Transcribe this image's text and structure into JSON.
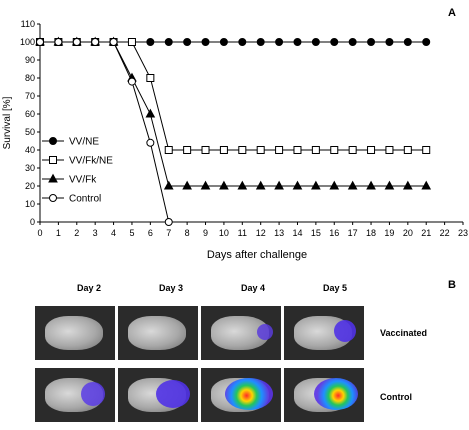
{
  "panels": {
    "a_label": "A",
    "b_label": "B"
  },
  "chart_data": {
    "type": "line",
    "title": "",
    "xlabel": "Days after challenge",
    "ylabel": "Survival [%]",
    "xlim": [
      0,
      23
    ],
    "ylim": [
      0,
      110
    ],
    "xticks": [
      0,
      1,
      2,
      3,
      4,
      5,
      6,
      7,
      8,
      9,
      10,
      11,
      12,
      13,
      14,
      15,
      16,
      17,
      18,
      19,
      20,
      21,
      22,
      23
    ],
    "yticks": [
      0,
      10,
      20,
      30,
      40,
      50,
      60,
      70,
      80,
      90,
      100,
      110
    ],
    "legend_position": "left-middle",
    "series": [
      {
        "name": "VV/NE",
        "marker": "filled-circle",
        "x": [
          0,
          1,
          2,
          3,
          4,
          5,
          6,
          7,
          8,
          9,
          10,
          11,
          12,
          13,
          14,
          15,
          16,
          17,
          18,
          19,
          20,
          21
        ],
        "y": [
          100,
          100,
          100,
          100,
          100,
          100,
          100,
          100,
          100,
          100,
          100,
          100,
          100,
          100,
          100,
          100,
          100,
          100,
          100,
          100,
          100,
          100
        ]
      },
      {
        "name": "VV/Fk/NE",
        "marker": "open-square",
        "x": [
          0,
          1,
          2,
          3,
          4,
          5,
          6,
          7,
          8,
          9,
          10,
          11,
          12,
          13,
          14,
          15,
          16,
          17,
          18,
          19,
          20,
          21
        ],
        "y": [
          100,
          100,
          100,
          100,
          100,
          100,
          80,
          40,
          40,
          40,
          40,
          40,
          40,
          40,
          40,
          40,
          40,
          40,
          40,
          40,
          40,
          40
        ]
      },
      {
        "name": "VV/Fk",
        "marker": "filled-triangle",
        "x": [
          0,
          1,
          2,
          3,
          4,
          5,
          6,
          7,
          8,
          9,
          10,
          11,
          12,
          13,
          14,
          15,
          16,
          17,
          18,
          19,
          20,
          21
        ],
        "y": [
          100,
          100,
          100,
          100,
          100,
          80,
          60,
          20,
          20,
          20,
          20,
          20,
          20,
          20,
          20,
          20,
          20,
          20,
          20,
          20,
          20,
          20
        ]
      },
      {
        "name": "Control",
        "marker": "open-circle",
        "x": [
          0,
          1,
          2,
          3,
          4,
          5,
          6,
          7
        ],
        "y": [
          100,
          100,
          100,
          100,
          100,
          78,
          44,
          0
        ]
      }
    ]
  },
  "imaging": {
    "days": [
      "Day 2",
      "Day 3",
      "Day 4",
      "Day 5"
    ],
    "rows": [
      "Vaccinated",
      "Control"
    ]
  }
}
